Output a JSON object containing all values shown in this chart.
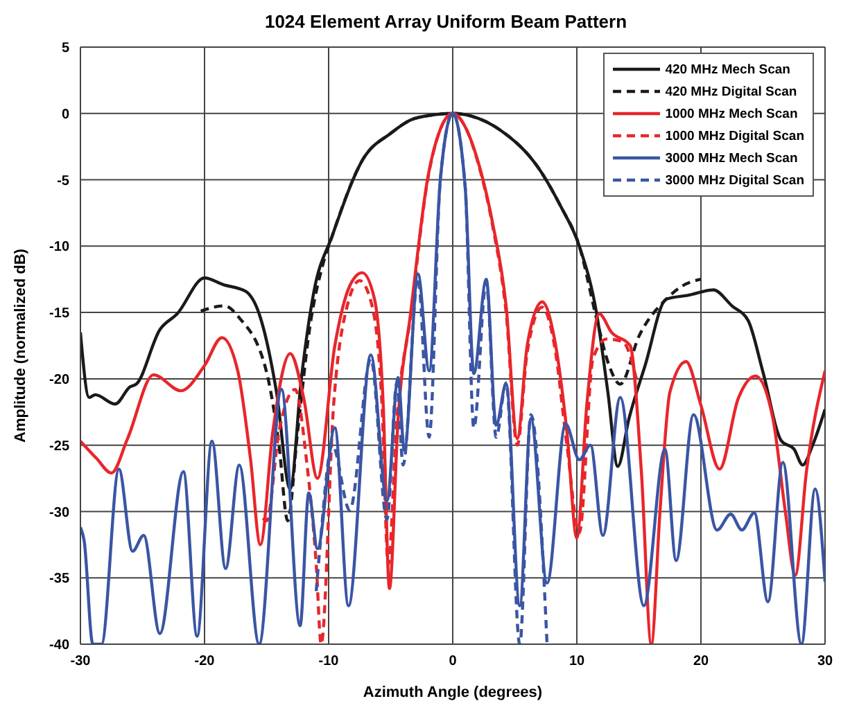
{
  "chart_data": {
    "type": "line",
    "title": "1024 Element Array Uniform Beam Pattern",
    "xlabel": "Azimuth Angle (degrees)",
    "ylabel": "Amplitude (normalized dB)",
    "xlim": [
      -30,
      30
    ],
    "xticks": [
      -30,
      -20,
      -10,
      0,
      10,
      20,
      30
    ],
    "ylim": [
      -40,
      5
    ],
    "yticks": [
      -40,
      -35,
      -30,
      -25,
      -20,
      -15,
      -10,
      -5,
      0,
      5
    ],
    "grid": true,
    "legend": "top right",
    "marker": "none",
    "series": [
      {
        "name": "420 MHz Mech Scan",
        "color": "#1a1a1a",
        "line_style": "solid",
        "x": [
          -30,
          -29.3,
          -28.8,
          -27.2,
          -26,
          -25.5,
          -23.6,
          -22.2,
          -20,
          -18.5,
          -16.7,
          -15.6,
          -14.2,
          -13.1,
          -12.2,
          -11.2,
          -9.7,
          -7.2,
          -5,
          -3.4,
          -1.5,
          0,
          1.5,
          3.9,
          6.9,
          8.7,
          10.2,
          11.6,
          12.5,
          13.3,
          14.2,
          15.5,
          17.2,
          19,
          21,
          22.5,
          23.8,
          25,
          26.5,
          27.5,
          28.2,
          29,
          30
        ],
        "values": [
          -16.5,
          -21.4,
          -21.2,
          -21.9,
          -20.6,
          -20.4,
          -16.3,
          -15.1,
          -12.4,
          -12.9,
          -13.4,
          -15.1,
          -21,
          -28.3,
          -20,
          -13.5,
          -9.2,
          -3.4,
          -1.5,
          -0.5,
          -0.1,
          0,
          -0.2,
          -1.3,
          -4.1,
          -7,
          -10,
          -15.1,
          -21,
          -26.6,
          -23,
          -19,
          -14,
          -13.7,
          -13.3,
          -14.5,
          -15.6,
          -19.5,
          -24.7,
          -25.3,
          -26.5,
          -25,
          -22.3
        ]
      },
      {
        "name": "420 MHz Digital Scan",
        "color": "#1a1a1a",
        "line_style": "dashed",
        "x": [
          -20.3,
          -18.4,
          -17.2,
          -15,
          -14,
          -13.3,
          -12.5,
          -11.5,
          -10.5,
          -9.7,
          -7.2,
          -5,
          -3.4,
          -1.5,
          0,
          1.5,
          3.9,
          6.9,
          8.7,
          10.2,
          11.6,
          12.6,
          13.5,
          15,
          17.2,
          18.5,
          20
        ],
        "values": [
          -14.9,
          -14.5,
          -15.4,
          -19.5,
          -25,
          -30.7,
          -24,
          -16,
          -11.5,
          -9.2,
          -3.4,
          -1.5,
          -0.5,
          -0.1,
          0,
          -0.2,
          -1.3,
          -4.1,
          -7,
          -10,
          -15.5,
          -19,
          -20.4,
          -16.8,
          -14,
          -13,
          -12.5
        ]
      },
      {
        "name": "1000 MHz Mech Scan",
        "color": "#e8262b",
        "line_style": "solid",
        "x": [
          -30,
          -28.7,
          -27.5,
          -26.2,
          -24.1,
          -21.9,
          -20,
          -18.6,
          -17.3,
          -16.3,
          -15.5,
          -14.5,
          -13.1,
          -12,
          -10.9,
          -9.5,
          -8.3,
          -7.3,
          -6.3,
          -5.6,
          -5.1,
          -4.4,
          -3.4,
          -2,
          -1,
          0,
          1,
          2,
          3.2,
          4.3,
          5.2,
          6,
          7.2,
          8.2,
          9.2,
          10,
          10.8,
          11.8,
          12.8,
          14.3,
          15.2,
          16,
          16.7,
          17.5,
          18.8,
          20,
          21.5,
          23,
          24.4,
          25.8,
          26.8,
          27.6,
          28.5,
          30
        ],
        "values": [
          -24.7,
          -26,
          -27.1,
          -24.5,
          -19.7,
          -20.9,
          -19,
          -16.9,
          -19.5,
          -26,
          -32.5,
          -24,
          -18.1,
          -21.5,
          -27.5,
          -17.5,
          -13,
          -12,
          -14,
          -22,
          -35.8,
          -23,
          -15.1,
          -4.8,
          -1.2,
          0,
          -1,
          -3.5,
          -8.2,
          -14.5,
          -24.5,
          -17.5,
          -14.2,
          -17,
          -24,
          -32,
          -22,
          -15.1,
          -16.5,
          -17.5,
          -27,
          -40,
          -30,
          -21,
          -18.7,
          -22,
          -26.8,
          -21.5,
          -19.8,
          -23,
          -30,
          -34.8,
          -27,
          -19.4
        ]
      },
      {
        "name": "1000 MHz Digital Scan",
        "color": "#e8262b",
        "line_style": "dashed",
        "x": [
          -15.3,
          -15,
          -14,
          -12.7,
          -11.8,
          -11,
          -10.6,
          -9.6,
          -8.5,
          -7.5,
          -6.5,
          -5.7,
          -5.2,
          -4.5,
          -3.4,
          -2,
          -1,
          0,
          1,
          2,
          3.2,
          4.3,
          5.2,
          6,
          7.2,
          8.2,
          9.2,
          10.2,
          11.3,
          12.4,
          13.7,
          14.8
        ],
        "values": [
          -30.5,
          -30.7,
          -24,
          -20.8,
          -26,
          -34,
          -40,
          -22,
          -14.5,
          -12.6,
          -14.5,
          -22,
          -34,
          -23,
          -15.3,
          -4.9,
          -1.2,
          0,
          -1,
          -3.6,
          -8.4,
          -15,
          -25,
          -18,
          -14.6,
          -17.5,
          -25,
          -31.6,
          -18.5,
          -17,
          -17.2,
          -20
        ]
      },
      {
        "name": "3000 MHz Mech Scan",
        "color": "#3a55a4",
        "line_style": "solid",
        "x": [
          -30,
          -29.7,
          -29,
          -28.3,
          -26.9,
          -25.8,
          -24.9,
          -23.6,
          -21.7,
          -20.6,
          -19.4,
          -18.3,
          -17.2,
          -15.6,
          -13.8,
          -12.3,
          -11.6,
          -10.9,
          -9.5,
          -8.4,
          -6.6,
          -5.3,
          -4.4,
          -3.9,
          -2.8,
          -1.9,
          -1,
          0,
          1,
          1.7,
          2.7,
          3.5,
          4.3,
          5.4,
          6.3,
          7.6,
          9.1,
          10.2,
          11.1,
          12.1,
          13.5,
          15.4,
          17.1,
          18,
          19.4,
          21.3,
          22.4,
          23.3,
          24.3,
          25.4,
          26.6,
          28.1,
          29.2,
          30
        ],
        "values": [
          -31.2,
          -32.2,
          -40,
          -40,
          -26.8,
          -33,
          -31.8,
          -39.2,
          -27,
          -39.4,
          -24.7,
          -34.3,
          -26.5,
          -40,
          -20.8,
          -38.6,
          -28.6,
          -32.8,
          -23.7,
          -37.1,
          -18.2,
          -29.2,
          -19.9,
          -25.4,
          -12.1,
          -19.4,
          -5,
          0,
          -5.5,
          -19.6,
          -12.5,
          -23.5,
          -20.4,
          -37.1,
          -23,
          -35.4,
          -23.4,
          -26.1,
          -25,
          -31.8,
          -21.4,
          -37.1,
          -25.3,
          -33.7,
          -22.7,
          -31.4,
          -30.2,
          -31.4,
          -30.1,
          -36.8,
          -26.3,
          -40,
          -28.3,
          -35.3
        ]
      },
      {
        "name": "3000 MHz Digital Scan",
        "color": "#3a55a4",
        "line_style": "dashed",
        "x": [
          -11,
          -10.7,
          -9.7,
          -8.3,
          -6.6,
          -5.3,
          -4.5,
          -4,
          -2.8,
          -1.9,
          -1,
          0,
          1,
          1.7,
          2.7,
          3.5,
          4.3,
          5.4,
          6.3,
          7.6
        ],
        "values": [
          -36,
          -32.7,
          -25,
          -29.9,
          -18.5,
          -30.6,
          -20.3,
          -26.5,
          -12.4,
          -24.4,
          -5,
          0,
          -5.5,
          -23.7,
          -12.7,
          -24.4,
          -20.3,
          -40,
          -22.7,
          -40
        ]
      }
    ]
  }
}
